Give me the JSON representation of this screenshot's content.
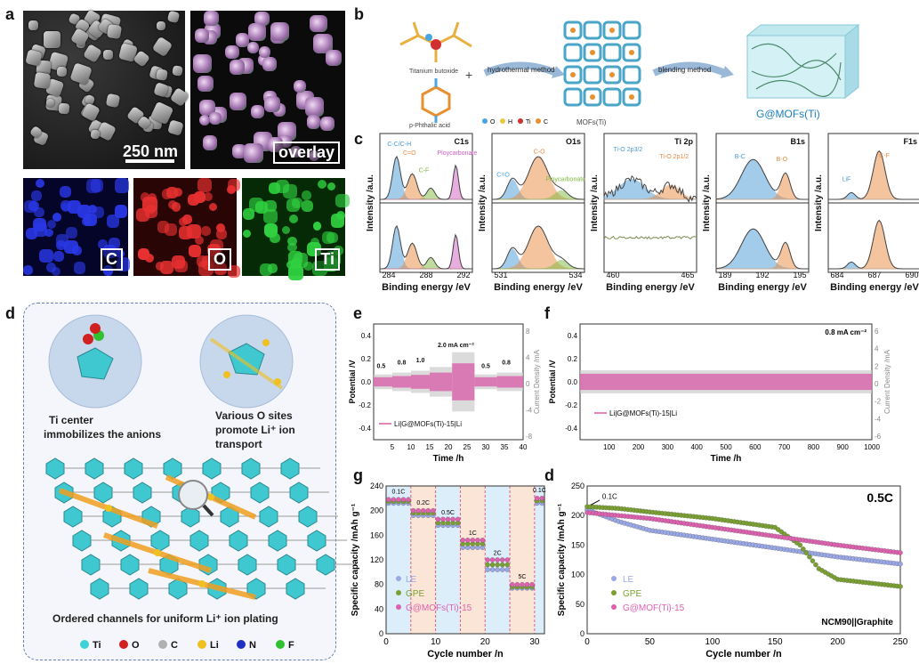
{
  "panels": {
    "a": {
      "label": "a",
      "scale_text": "250 nm",
      "overlay_tag": "overlay",
      "c_tag": "C",
      "o_tag": "O",
      "ti_tag": "Ti"
    },
    "b": {
      "label": "b",
      "titanium": "Titanium butoxide",
      "phthalic": "p-Phthalic acid",
      "hydro": "hydrothermal method",
      "mofs": "MOFs(Ti)",
      "blending": "blending method",
      "gmofs": "G@MOFs(Ti)",
      "legend": [
        "O",
        "H",
        "Ti",
        "C"
      ],
      "legend_colors": [
        "#4aa6e0",
        "#e8c840",
        "#d03030",
        "#e89030"
      ]
    },
    "c": {
      "label": "c",
      "ylabel": "Intensity /a.u.",
      "xlabel": "Binding energy /eV",
      "spectra": [
        {
          "title": "C1s",
          "ticks": [
            "284",
            "288",
            "292"
          ],
          "peaks": [
            "C-C/C-H",
            "C=O",
            "C-F",
            "Ploycarbonate"
          ]
        },
        {
          "title": "O1s",
          "ticks": [
            "531",
            "534"
          ],
          "peaks": [
            "C=O",
            "C-O",
            "Ploycarbonate"
          ]
        },
        {
          "title": "Ti 2p",
          "ticks": [
            "460",
            "465"
          ],
          "peaks": [
            "Ti-O 2p3/2",
            "Ti-O 2p1/2"
          ]
        },
        {
          "title": "B1s",
          "ticks": [
            "189",
            "192",
            "195"
          ],
          "peaks": [
            "B-C",
            "B-O"
          ]
        },
        {
          "title": "F1s",
          "ticks": [
            "684",
            "687",
            "690"
          ],
          "peaks": [
            "LiF",
            "C-F"
          ]
        }
      ]
    },
    "d": {
      "label": "d",
      "ti_center": "Ti  center\nimmobilizes the anions",
      "o_sites": "Various O sites\npromote Li⁺ ion\ntransport",
      "channels": "Ordered channels for uniform Li⁺ ion plating",
      "legend": [
        "Ti",
        "O",
        "C",
        "Li",
        "N",
        "F"
      ],
      "legend_colors": [
        "#40d0d8",
        "#d02020",
        "#b0b0b0",
        "#f0c020",
        "#2030c0",
        "#30c030"
      ]
    },
    "e": {
      "label": "e",
      "ylabel": "Potential /V",
      "y2label": "Current Density /mA",
      "xlabel": "Time /h",
      "legend": "Li|G@MOFs(Ti)-15|Li",
      "rates": [
        "0.5",
        "0.8",
        "1.0",
        "2.0 mA cm⁻²",
        "0.5",
        "0.8"
      ],
      "xticks": [
        "5",
        "10",
        "15",
        "20",
        "25",
        "30",
        "35",
        "40"
      ],
      "yticks": [
        "0.4",
        "0.2",
        "0.0",
        "-0.2",
        "-0.4"
      ],
      "y2ticks": [
        "8",
        "4",
        "0",
        "-4",
        "-8"
      ]
    },
    "f": {
      "label": "f",
      "ylabel": "Potential /V",
      "y2label": "Current Density /mA",
      "xlabel": "Time /h",
      "legend": "Li|G@MOFs(Ti)-15|Li",
      "rate": "0.8 mA cm⁻²",
      "xticks": [
        "100",
        "200",
        "300",
        "400",
        "500",
        "600",
        "700",
        "800",
        "900",
        "1000"
      ],
      "yticks": [
        "0.4",
        "0.2",
        "0.0",
        "-0.2",
        "-0.4"
      ],
      "y2ticks": [
        "6",
        "4",
        "2",
        "0",
        "-2",
        "-4",
        "-6"
      ]
    },
    "g": {
      "label": "g",
      "ylabel": "Specific capacity /mAh g⁻¹",
      "xlabel": "Cycle number /n",
      "rates": [
        "0.1C",
        "0.2C",
        "0.5C",
        "1C",
        "2C",
        "5C",
        "0.1C"
      ],
      "xticks": [
        "0",
        "10",
        "20",
        "30"
      ],
      "yticks": [
        "0",
        "40",
        "80",
        "120",
        "160",
        "200",
        "240"
      ],
      "legend": [
        "LE",
        "GPE",
        "G@MOFs(Ti)-15"
      ]
    },
    "h": {
      "label": "d",
      "ylabel": "Specific capacity /mAh g⁻¹",
      "xlabel": "Cycle number /n",
      "rate_tag": "0.5C",
      "init": "0.1C",
      "cell": "NCM90||Graphite",
      "xticks": [
        "0",
        "50",
        "100",
        "150",
        "200",
        "250"
      ],
      "yticks": [
        "0",
        "50",
        "100",
        "150",
        "200",
        "250"
      ],
      "legend": [
        "LE",
        "GPE",
        "G@MOF(Ti)-15"
      ]
    }
  },
  "chart_data": [
    {
      "type": "scatter",
      "title": "",
      "xlabel": "Cycle number /n",
      "ylabel": "Specific capacity /mAh g⁻¹",
      "xlim": [
        0,
        32
      ],
      "ylim": [
        0,
        240
      ],
      "series": [
        {
          "name": "LE",
          "color": "#9aa8e8",
          "steps": [
            [
              0,
              5,
              212
            ],
            [
              5,
              10,
              192
            ],
            [
              10,
              15,
              176
            ],
            [
              15,
              20,
              140
            ],
            [
              20,
              25,
              104
            ],
            [
              25,
              30,
              74
            ],
            [
              30,
              32,
              212
            ]
          ]
        },
        {
          "name": "GPE",
          "color": "#7aa030",
          "steps": [
            [
              0,
              5,
              215
            ],
            [
              5,
              10,
              196
            ],
            [
              10,
              15,
              180
            ],
            [
              15,
              20,
              146
            ],
            [
              20,
              25,
              112
            ],
            [
              25,
              30,
              76
            ],
            [
              30,
              32,
              216
            ]
          ]
        },
        {
          "name": "G@MOFs(Ti)-15",
          "color": "#e060b0",
          "steps": [
            [
              0,
              5,
              218
            ],
            [
              5,
              10,
              200
            ],
            [
              10,
              15,
              186
            ],
            [
              15,
              20,
              152
            ],
            [
              20,
              25,
              120
            ],
            [
              25,
              30,
              80
            ],
            [
              30,
              32,
              220
            ]
          ]
        }
      ]
    },
    {
      "type": "scatter",
      "title": "",
      "xlabel": "Cycle number /n",
      "ylabel": "Specific capacity /mAh g⁻¹",
      "xlim": [
        0,
        250
      ],
      "ylim": [
        0,
        250
      ],
      "series": [
        {
          "name": "LE",
          "color": "#9aa8e8",
          "points": [
            [
              0,
              210
            ],
            [
              25,
              190
            ],
            [
              50,
              175
            ],
            [
              100,
              160
            ],
            [
              150,
              145
            ],
            [
              200,
              130
            ],
            [
              250,
              118
            ]
          ]
        },
        {
          "name": "GPE",
          "color": "#7aa030",
          "points": [
            [
              0,
              215
            ],
            [
              25,
              212
            ],
            [
              50,
              206
            ],
            [
              100,
              195
            ],
            [
              150,
              180
            ],
            [
              170,
              150
            ],
            [
              185,
              110
            ],
            [
              200,
              92
            ],
            [
              250,
              80
            ]
          ]
        },
        {
          "name": "G@MOF(Ti)-15",
          "color": "#e060b0",
          "points": [
            [
              0,
              205
            ],
            [
              25,
              200
            ],
            [
              50,
              195
            ],
            [
              100,
              180
            ],
            [
              150,
              165
            ],
            [
              200,
              150
            ],
            [
              250,
              137
            ]
          ]
        }
      ]
    }
  ]
}
